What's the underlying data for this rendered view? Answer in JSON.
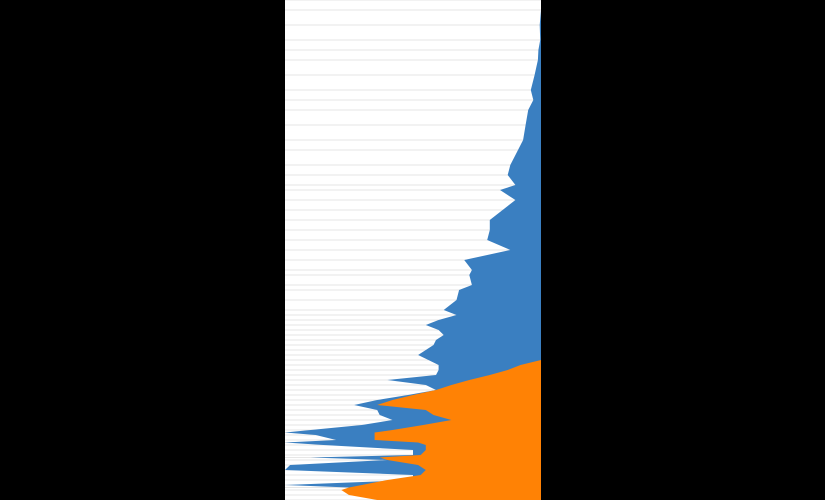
{
  "chart_data": {
    "type": "area",
    "orientation": "horizontal",
    "title": "",
    "xlabel": "",
    "ylabel": "",
    "grid": true,
    "legend": "none",
    "x_range": [
      0,
      100
    ],
    "y_range": [
      0,
      100
    ],
    "colors": {
      "background": "#000000",
      "plot_background": "#ffffff",
      "grid": "#e6e6e6",
      "blue": "#3a7fc1",
      "orange": "#ff8205"
    },
    "y": [
      0,
      2,
      5,
      8,
      10,
      12,
      15,
      18,
      20,
      22,
      25,
      28,
      30,
      33,
      35,
      37,
      38,
      40,
      42,
      44,
      46,
      48,
      50,
      52,
      54,
      55,
      57,
      58,
      60,
      62,
      63,
      64,
      65,
      66,
      67,
      68,
      69,
      70,
      71,
      72,
      73,
      74,
      75,
      76,
      77,
      78,
      79,
      80,
      81,
      82,
      83,
      84,
      85,
      86,
      86.5,
      87,
      88,
      88.5,
      89,
      90,
      91,
      91.5,
      92,
      93,
      94,
      95,
      96,
      97,
      97.5,
      98,
      99,
      100
    ],
    "series": [
      {
        "color": "blue",
        "values": [
          0,
          0,
          0.5,
          0.3,
          1,
          1.2,
          2.5,
          4,
          3,
          5,
          6,
          7,
          9,
          12,
          13,
          10,
          16,
          10,
          15,
          20,
          20,
          21,
          12,
          30,
          27,
          28,
          27,
          32,
          33,
          38,
          33,
          40,
          45,
          40,
          38,
          41,
          42,
          45,
          48,
          44,
          40,
          40,
          41,
          60,
          45,
          41,
          52,
          64,
          73,
          64,
          63,
          58,
          70,
          90,
          100,
          88,
          80,
          100,
          85,
          50,
          50,
          90,
          60,
          98,
          100,
          50,
          50,
          100,
          75,
          60,
          60,
          60
        ]
      },
      {
        "color": "orange",
        "values": [
          0,
          0,
          0,
          0,
          0,
          0,
          0,
          0,
          0,
          0,
          0,
          0,
          0,
          0,
          0,
          0,
          0,
          0,
          0,
          0,
          0,
          0,
          0,
          0,
          0,
          0,
          0,
          0,
          0,
          0,
          0,
          0,
          0,
          0,
          0,
          0,
          0,
          0,
          0,
          0,
          8,
          13,
          20,
          28,
          35,
          41,
          50,
          58,
          64,
          45,
          42,
          35,
          46,
          58,
          65,
          65,
          65,
          48,
          45,
          45,
          47,
          63,
          60,
          48,
          45,
          47,
          60,
          70,
          75,
          78,
          75,
          64
        ]
      }
    ]
  }
}
